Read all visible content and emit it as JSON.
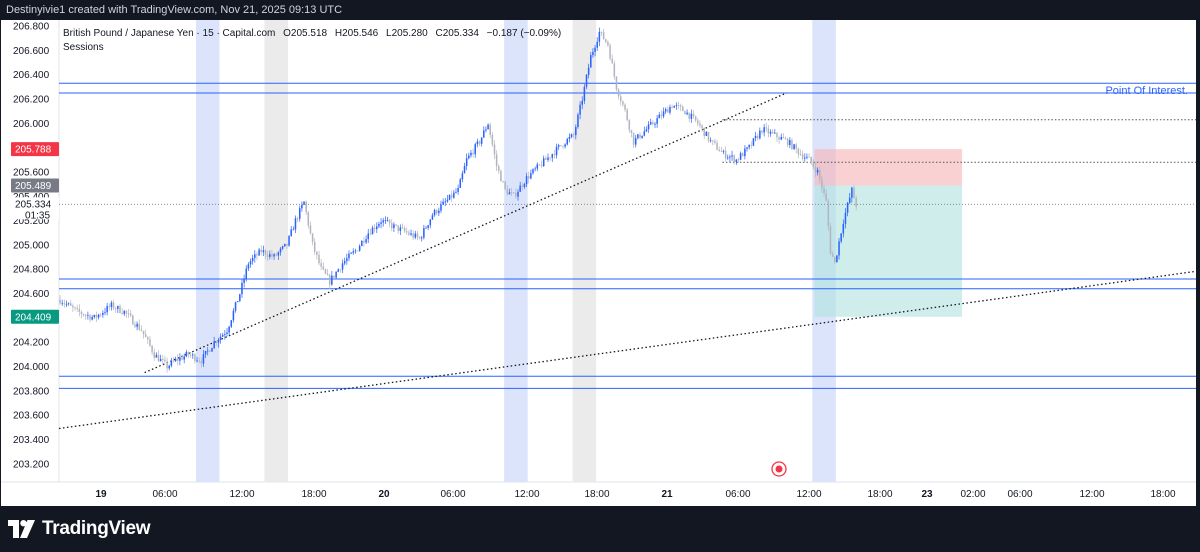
{
  "header": {
    "credit": "Destinyivie1 created with TradingView.com, Nov 21, 2025 09:13 UTC"
  },
  "legend": {
    "symbol": "British Pound / Japanese Yen · 15 · Capital.com",
    "open": "O205.518",
    "high": "H205.546",
    "low": "L205.280",
    "close": "C205.334",
    "change": "−0.187 (−0.09%)",
    "indicator": "Sessions"
  },
  "annotation": {
    "point_of_interest": "Point Of Interest."
  },
  "price_labels": {
    "stop": "205.788",
    "entry": "205.489",
    "current": "205.334",
    "countdown": "01:35",
    "target": "204.409"
  },
  "colors": {
    "up_candle": "#2962ff",
    "down_candle": "#b2b5be",
    "horizontal_line": "#2962ff",
    "stop_zone": "#f7b2b5",
    "target_zone": "#b4e3e0",
    "session_blue": "#dbe4fb",
    "session_grey": "#ebebeb",
    "stop_label": "#f23645",
    "entry_label": "#787b86",
    "target_label": "#089981"
  },
  "footer": {
    "brand": "TradingView"
  },
  "chart_data": {
    "type": "candlestick",
    "title": "British Pound / Japanese Yen · 15 · Capital.com",
    "ylim": [
      203.05,
      206.85
    ],
    "y_ticks": [
      203.2,
      203.4,
      203.6,
      203.8,
      204.0,
      204.2,
      204.4,
      204.6,
      204.8,
      205.0,
      205.2,
      205.4,
      205.6,
      205.8,
      206.0,
      206.2,
      206.4,
      206.6,
      206.8
    ],
    "x_tick_labels": [
      "19",
      "06:00",
      "12:00",
      "18:00",
      "20",
      "06:00",
      "12:00",
      "18:00",
      "21",
      "06:00",
      "12:00",
      "18:00",
      "23",
      "02:00",
      "06:00",
      "12:00",
      "18:00"
    ],
    "price_path": [
      [
        0,
        204.55
      ],
      [
        8,
        204.45
      ],
      [
        16,
        204.4
      ],
      [
        24,
        204.5
      ],
      [
        30,
        204.45
      ],
      [
        38,
        204.3
      ],
      [
        44,
        204.1
      ],
      [
        50,
        204.0
      ],
      [
        54,
        204.05
      ],
      [
        60,
        204.1
      ],
      [
        66,
        204.05
      ],
      [
        72,
        204.2
      ],
      [
        78,
        204.3
      ],
      [
        84,
        204.6
      ],
      [
        88,
        204.85
      ],
      [
        94,
        204.95
      ],
      [
        100,
        204.9
      ],
      [
        106,
        205.0
      ],
      [
        110,
        205.2
      ],
      [
        114,
        205.35
      ],
      [
        118,
        205.0
      ],
      [
        122,
        204.8
      ],
      [
        126,
        204.7
      ],
      [
        132,
        204.85
      ],
      [
        138,
        204.95
      ],
      [
        144,
        205.1
      ],
      [
        150,
        205.2
      ],
      [
        156,
        205.15
      ],
      [
        162,
        205.1
      ],
      [
        168,
        205.05
      ],
      [
        174,
        205.25
      ],
      [
        180,
        205.35
      ],
      [
        186,
        205.45
      ],
      [
        190,
        205.7
      ],
      [
        196,
        205.85
      ],
      [
        200,
        206.0
      ],
      [
        204,
        205.65
      ],
      [
        208,
        205.45
      ],
      [
        212,
        205.4
      ],
      [
        218,
        205.55
      ],
      [
        224,
        205.65
      ],
      [
        230,
        205.75
      ],
      [
        236,
        205.85
      ],
      [
        240,
        205.9
      ],
      [
        244,
        206.2
      ],
      [
        248,
        206.55
      ],
      [
        252,
        206.75
      ],
      [
        256,
        206.65
      ],
      [
        260,
        206.3
      ],
      [
        264,
        206.1
      ],
      [
        268,
        205.85
      ],
      [
        274,
        205.95
      ],
      [
        280,
        206.05
      ],
      [
        286,
        206.15
      ],
      [
        292,
        206.1
      ],
      [
        298,
        206.0
      ],
      [
        304,
        205.85
      ],
      [
        310,
        205.75
      ],
      [
        316,
        205.7
      ],
      [
        322,
        205.8
      ],
      [
        328,
        205.95
      ],
      [
        334,
        205.9
      ],
      [
        340,
        205.85
      ],
      [
        346,
        205.75
      ],
      [
        350,
        205.7
      ],
      [
        354,
        205.6
      ],
      [
        358,
        205.35
      ],
      [
        360,
        204.95
      ],
      [
        362,
        204.85
      ],
      [
        366,
        205.2
      ],
      [
        370,
        205.45
      ],
      [
        372,
        205.33
      ]
    ],
    "horizontal_levels": [
      206.33,
      206.25,
      204.72,
      204.64,
      203.92,
      203.82
    ],
    "dotted_levels": [
      206.03,
      205.68
    ],
    "trendlines": [
      {
        "from": [
          40,
          203.95
        ],
        "to": [
          340,
          206.25
        ]
      },
      {
        "from": [
          0,
          203.49
        ],
        "to": [
          600,
          204.95
        ]
      }
    ],
    "sessions": [
      {
        "start": 64,
        "end": 75,
        "kind": "blue"
      },
      {
        "start": 96,
        "end": 107,
        "kind": "grey"
      },
      {
        "start": 208,
        "end": 219,
        "kind": "blue"
      },
      {
        "start": 240,
        "end": 251,
        "kind": "grey"
      },
      {
        "start": 352,
        "end": 363,
        "kind": "blue"
      }
    ],
    "position": {
      "entry": 205.489,
      "stop": 205.788,
      "target": 204.409,
      "start": 353,
      "end": 422
    },
    "last_price": 205.334
  }
}
